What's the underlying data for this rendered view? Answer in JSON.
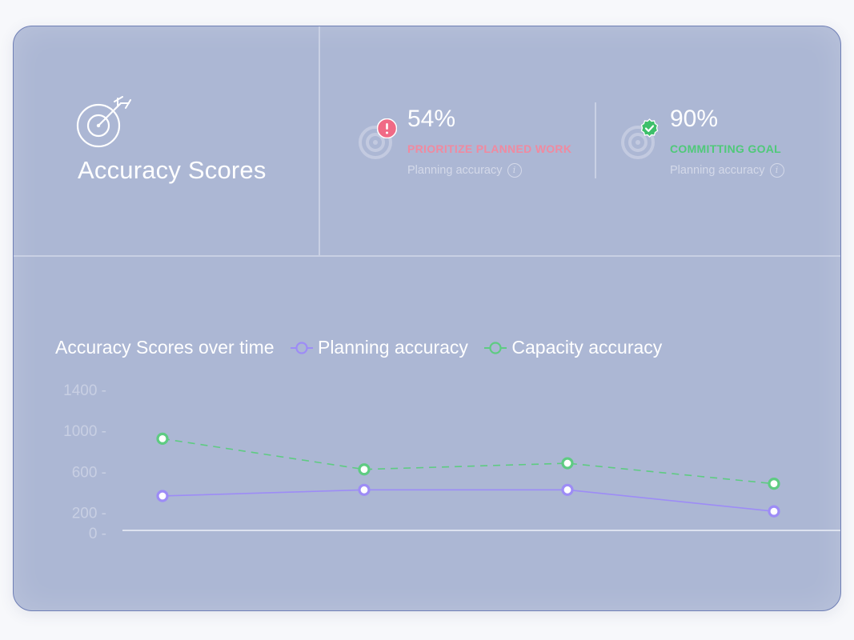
{
  "card": {
    "title": "Accuracy Scores",
    "title_icon": "target-arrow-icon"
  },
  "metrics": [
    {
      "value": "54%",
      "status": "PRIORITIZE PLANNED WORK",
      "status_color": "#f08aa0",
      "badge_icon": "alert-icon",
      "badge_color": "#f06a86",
      "label": "Planning accuracy",
      "info_icon": "info-icon"
    },
    {
      "value": "90%",
      "status": "COMMITTING GOAL",
      "status_color": "#4fc979",
      "badge_icon": "check-icon",
      "badge_color": "#3dbf6a",
      "label": "Planning accuracy",
      "info_icon": "info-icon"
    }
  ],
  "chart_data": {
    "type": "line",
    "title": "Accuracy Scores over time",
    "x": [
      1,
      2,
      3,
      4
    ],
    "ylim": [
      0,
      1400
    ],
    "yticks": [
      {
        "value": 0,
        "label": "0 -"
      },
      {
        "value": 200,
        "label": "200 -"
      },
      {
        "value": 600,
        "label": "600 -"
      },
      {
        "value": 1000,
        "label": "1000 -"
      },
      {
        "value": 1400,
        "label": "1400 -"
      }
    ],
    "series": [
      {
        "name": "Planning accuracy",
        "color": "#9d8cf6",
        "dash": false,
        "values": [
          360,
          420,
          420,
          210
        ]
      },
      {
        "name": "Capacity accuracy",
        "color": "#5ecb82",
        "dash": true,
        "values": [
          920,
          620,
          680,
          480
        ]
      }
    ],
    "grid": false,
    "legend": "top-left"
  }
}
